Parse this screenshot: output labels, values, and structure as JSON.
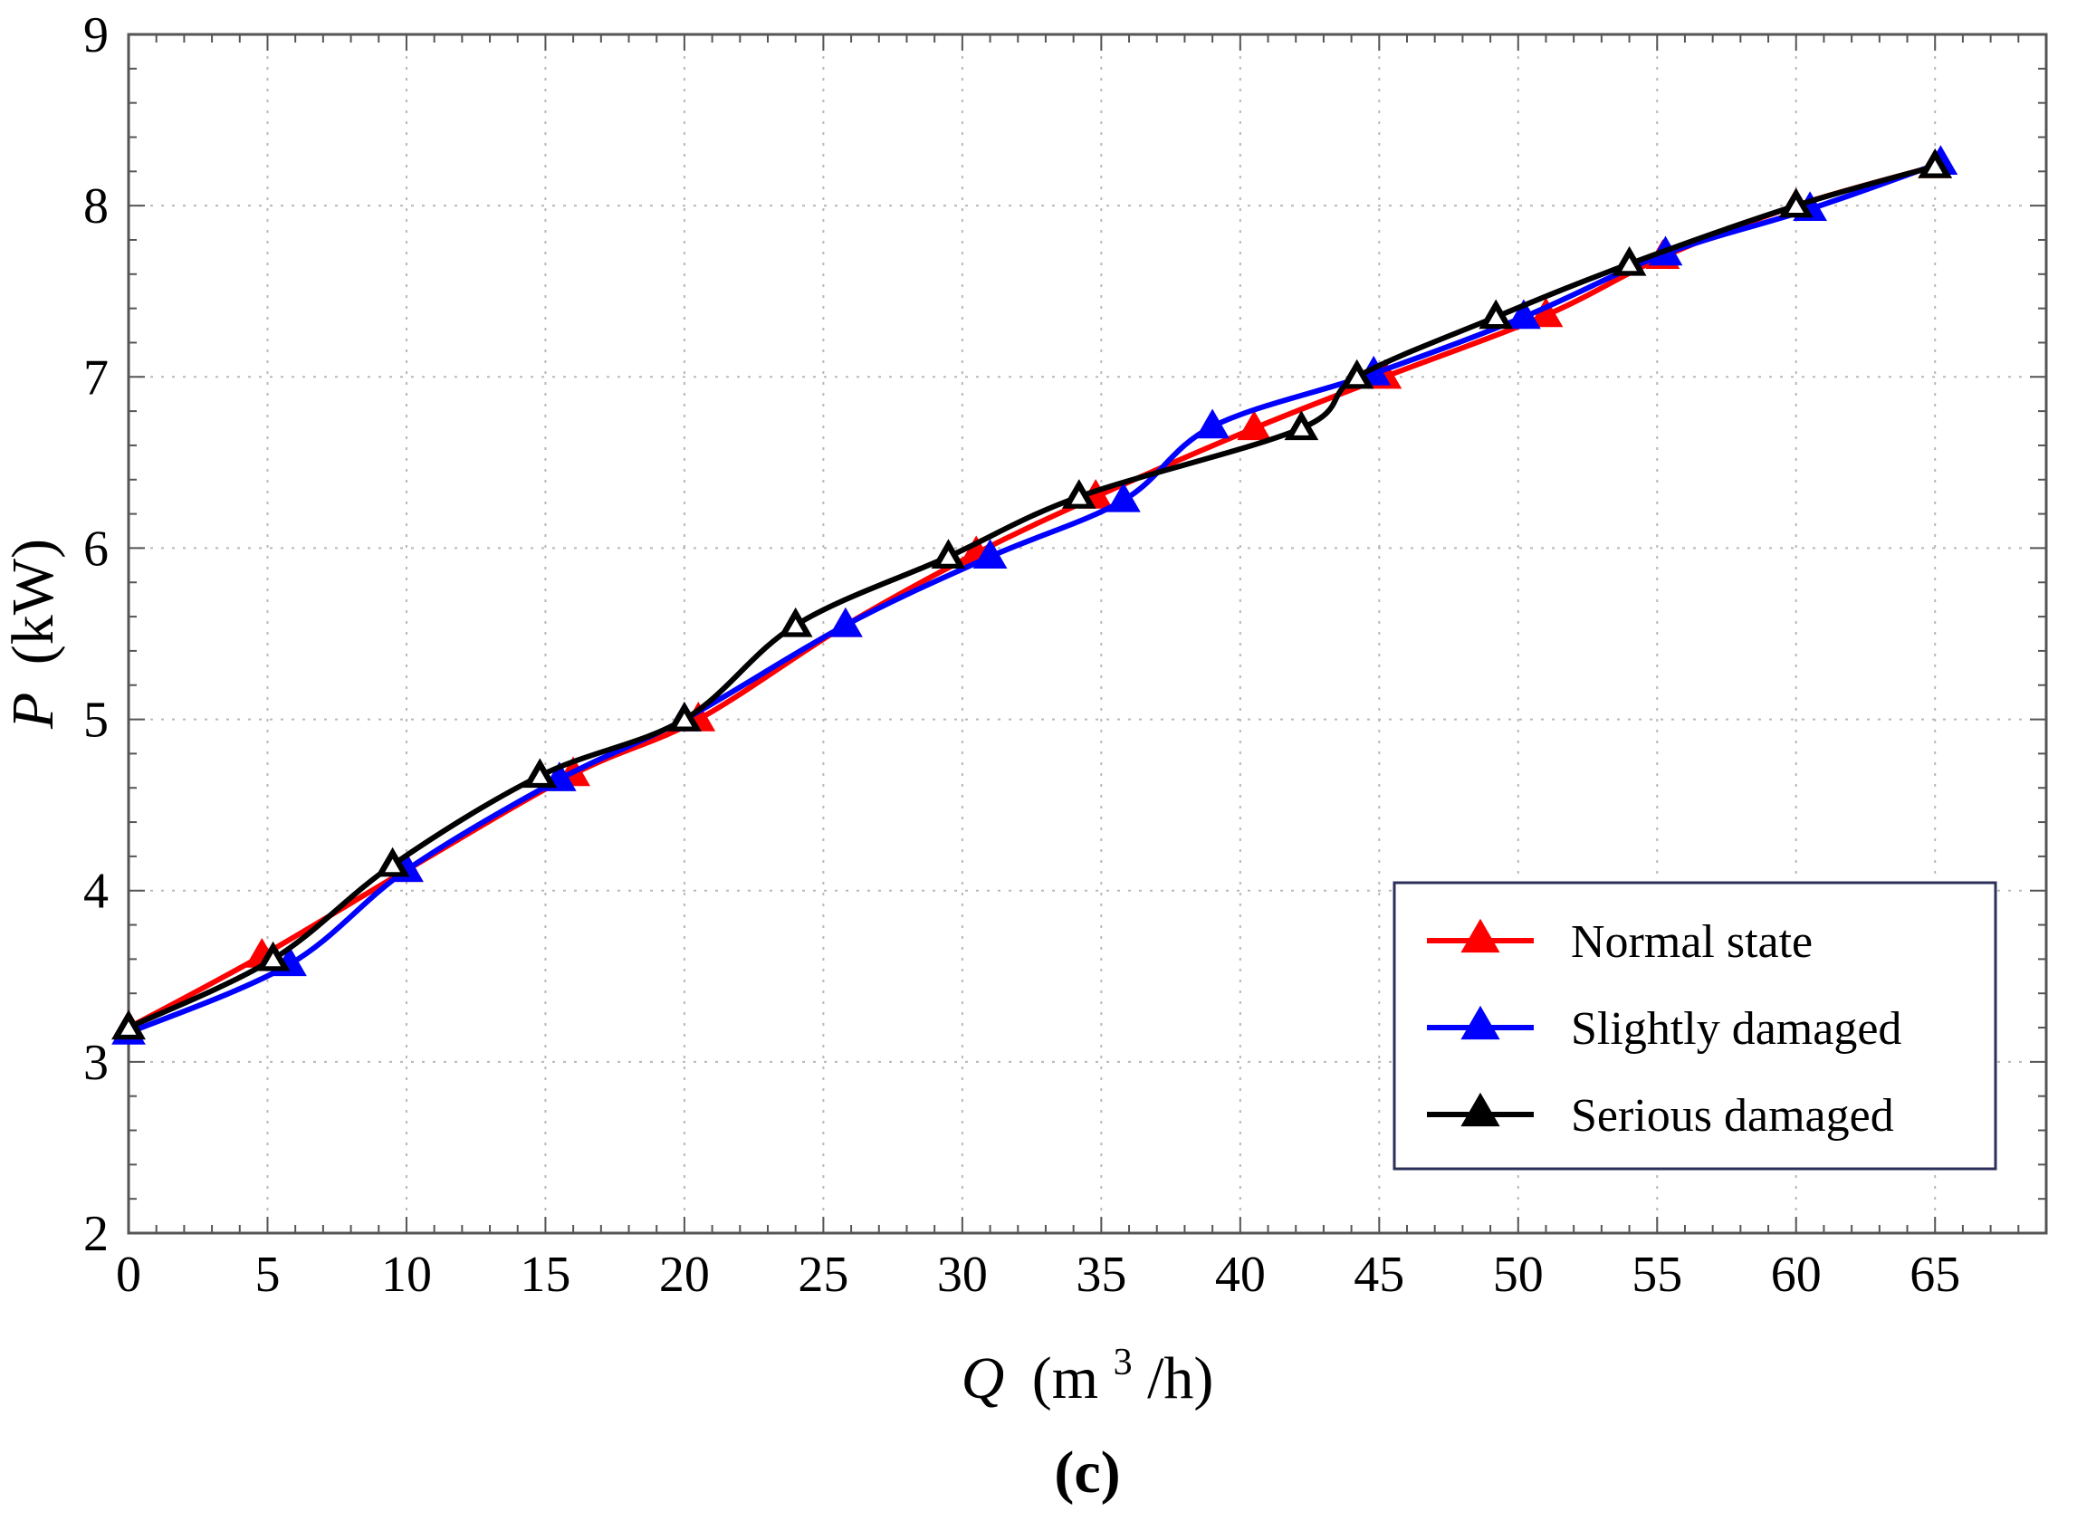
{
  "chart_data": {
    "type": "line",
    "title": "",
    "xlabel": {
      "var": "Q",
      "unit_pre": "(m",
      "unit_sup": "3",
      "unit_post": "/h)"
    },
    "ylabel": {
      "var": "P",
      "unit": "(kW)"
    },
    "xlim": [
      0,
      69
    ],
    "ylim": [
      2,
      9
    ],
    "xticks": [
      0,
      5,
      10,
      15,
      20,
      25,
      30,
      35,
      40,
      45,
      50,
      55,
      60,
      65
    ],
    "yticks": [
      2,
      3,
      4,
      5,
      6,
      7,
      8,
      9
    ],
    "grid": true,
    "legend_position": "bottom-right",
    "subfigure_label": "(c)",
    "series": [
      {
        "name": "Normal state",
        "color": "#ff0000",
        "marker": "triangle",
        "x": [
          0,
          4.8,
          10,
          16,
          20.5,
          25.8,
          30.5,
          34.8,
          40.5,
          45.2,
          51,
          55.2,
          60,
          65
        ],
        "y": [
          3.2,
          3.62,
          4.12,
          4.68,
          5.0,
          5.55,
          5.97,
          6.3,
          6.7,
          7.0,
          7.36,
          7.7,
          8.0,
          8.23
        ]
      },
      {
        "name": "Slightly damaged",
        "color": "#0000ff",
        "marker": "triangle",
        "x": [
          0,
          5.8,
          10,
          15.5,
          20,
          25.8,
          31,
          35.8,
          39,
          44.8,
          50.2,
          55.3,
          60.5,
          65.2
        ],
        "y": [
          3.17,
          3.57,
          4.12,
          4.65,
          5.0,
          5.55,
          5.95,
          6.28,
          6.71,
          7.02,
          7.35,
          7.72,
          7.98,
          8.25
        ]
      },
      {
        "name": "Serious damaged",
        "color": "#000000",
        "marker": "triangle",
        "x": [
          0,
          5.2,
          9.5,
          14.8,
          20,
          24,
          29.5,
          34.2,
          42.2,
          44.2,
          49.2,
          54,
          60,
          65
        ],
        "y": [
          3.2,
          3.6,
          4.15,
          4.67,
          5.0,
          5.55,
          5.95,
          6.3,
          6.7,
          7.0,
          7.35,
          7.66,
          8.0,
          8.23
        ]
      }
    ]
  }
}
